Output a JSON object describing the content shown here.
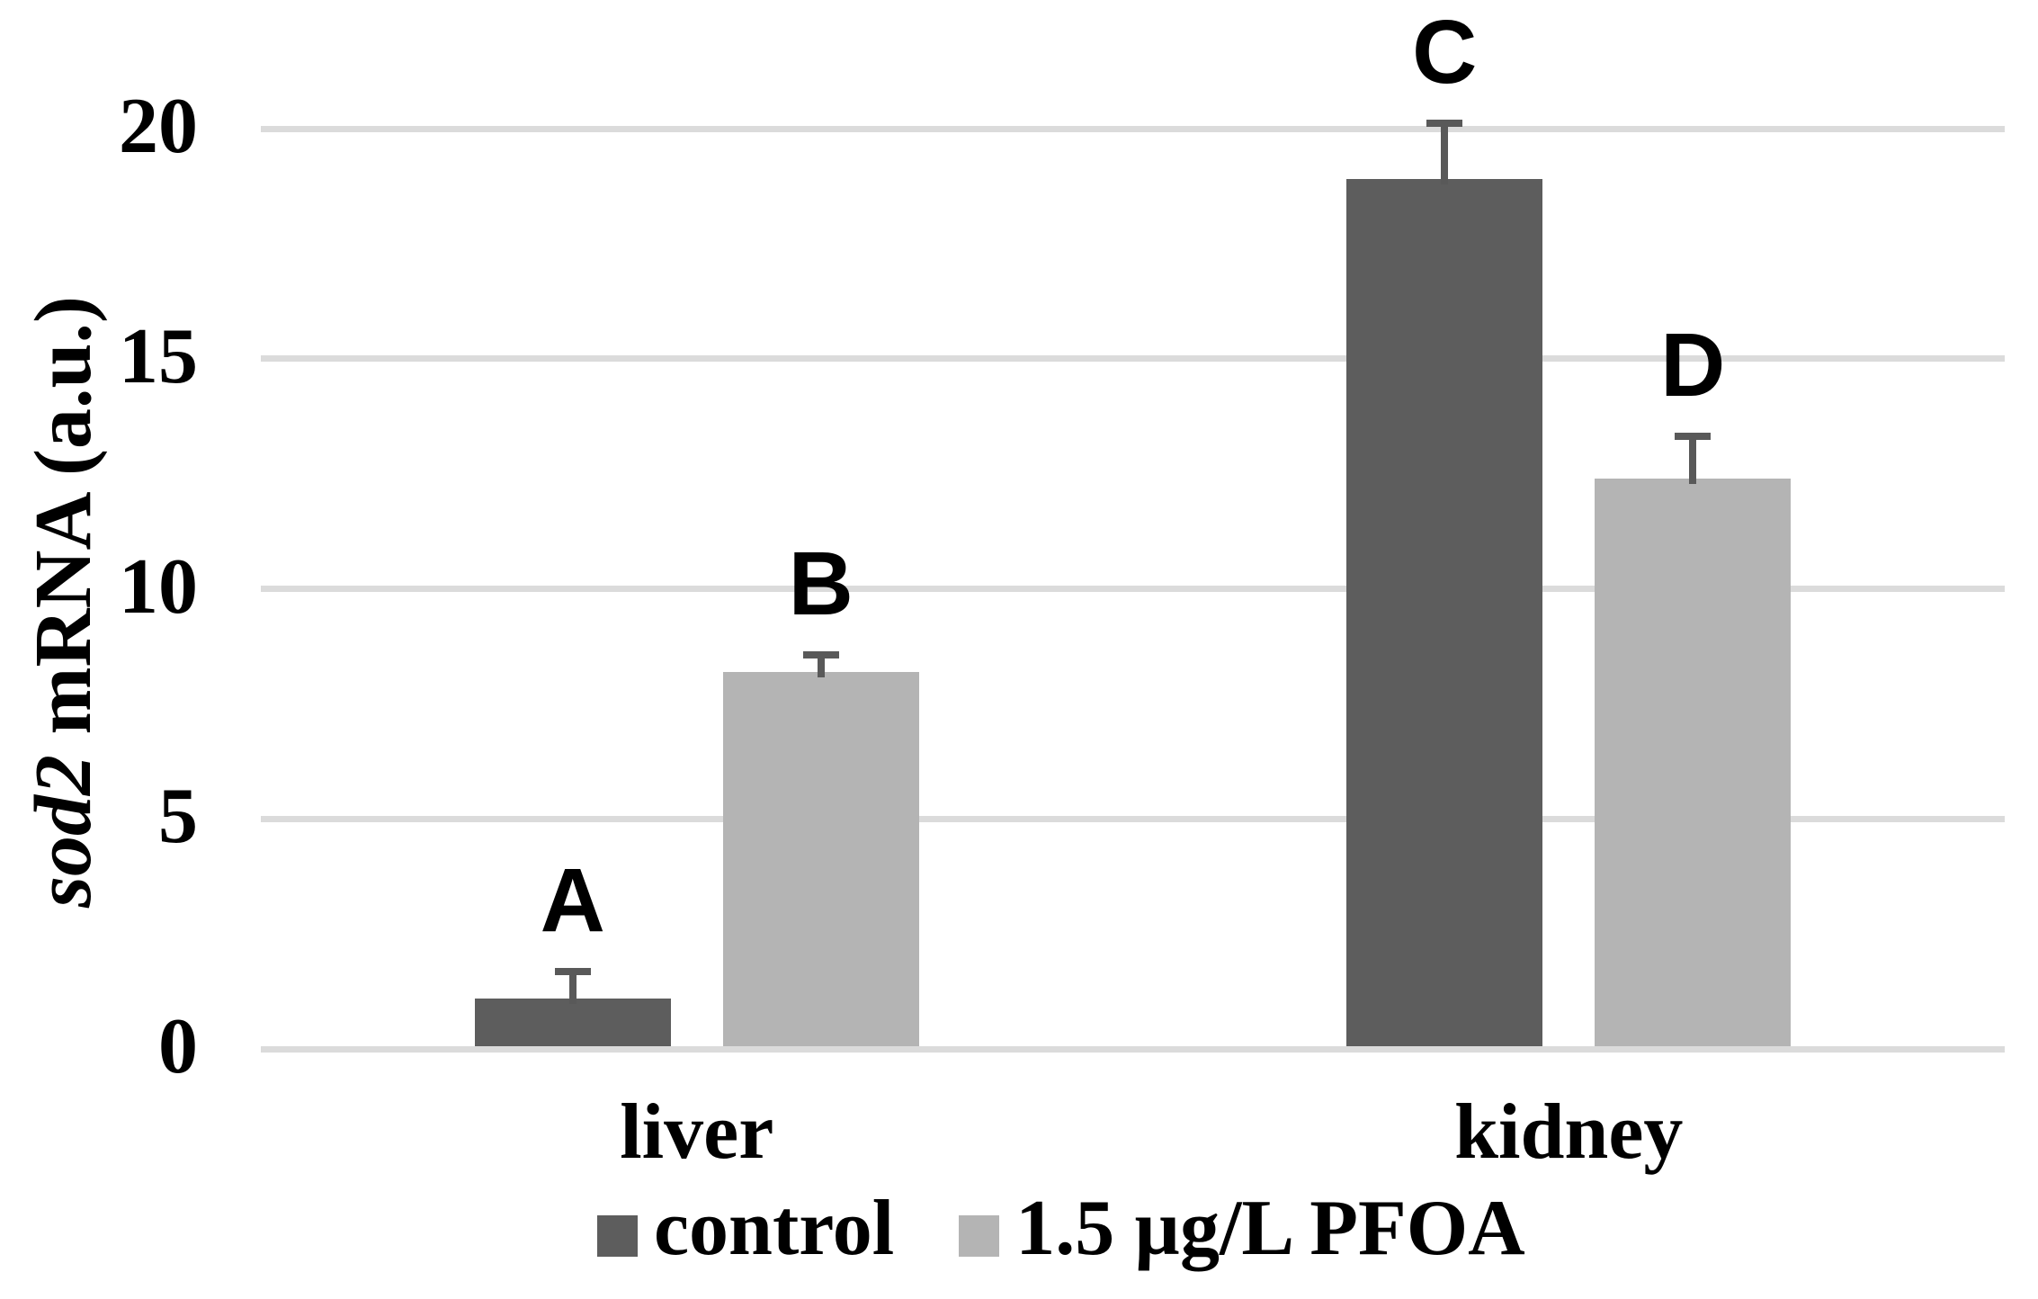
{
  "figure": {
    "ylabel": {
      "italic": "sod2",
      "rest": " mRNA (a.u.)"
    }
  },
  "chart_data": {
    "type": "bar",
    "title": "",
    "ylabel": "sod2 mRNA (a.u.)",
    "ylabel_italic_part": "sod2",
    "categories": [
      "liver",
      "kidney"
    ],
    "series": [
      {
        "name": "control",
        "color": "#5d5d5d",
        "values": [
          1.1,
          18.9
        ],
        "errors_plus": [
          0.65,
          1.3
        ],
        "bar_labels": [
          "A",
          "C"
        ]
      },
      {
        "name": "1.5 µg/L PFOA",
        "color": "#b4b4b4",
        "values": [
          8.2,
          12.4
        ],
        "errors_plus": [
          0.45,
          1.0
        ],
        "bar_labels": [
          "B",
          "D"
        ]
      }
    ],
    "yticks": [
      0,
      5,
      10,
      15,
      20
    ],
    "ylim": [
      0,
      20
    ],
    "grid": true,
    "gridline_color": "#dbdbdb",
    "error_bar_color": "#595959",
    "text_color": "#000000",
    "legend_position": "bottom",
    "legend_labels": [
      "control",
      "1.5 µg/L PFOA"
    ]
  }
}
